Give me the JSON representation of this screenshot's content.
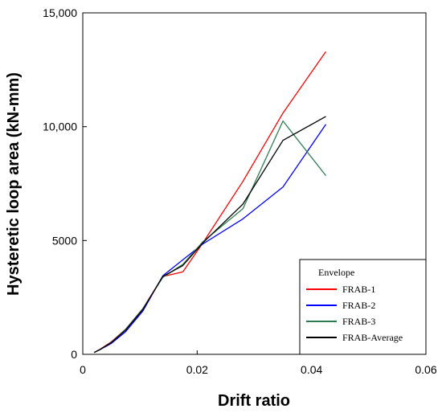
{
  "chart_data": {
    "type": "line",
    "xlabel": "Drift ratio",
    "ylabel": "Hysteretic loop area (kN-mm)",
    "xlim": [
      0,
      0.06
    ],
    "ylim": [
      0,
      15000
    ],
    "x_ticks": [
      0,
      0.02,
      0.04,
      0.06
    ],
    "x_tick_labels": [
      "0",
      "0.02",
      "0.04",
      "0.06"
    ],
    "y_ticks": [
      0,
      5000,
      10000,
      15000
    ],
    "y_tick_labels": [
      "0",
      "5000",
      "10,000",
      "15,000"
    ],
    "grid": false,
    "legend": {
      "title": "Envelope",
      "position": "bottom-right"
    },
    "series": [
      {
        "name": "FRAB-1",
        "color": "#ff0000",
        "x": [
          0.002,
          0.003,
          0.005,
          0.0075,
          0.0105,
          0.014,
          0.0175,
          0.021,
          0.028,
          0.035,
          0.0425
        ],
        "y": [
          80,
          220,
          550,
          1100,
          2000,
          3420,
          3620,
          4900,
          7600,
          10600,
          13300
        ]
      },
      {
        "name": "FRAB-2",
        "color": "#0000ff",
        "x": [
          0.002,
          0.003,
          0.005,
          0.0075,
          0.0105,
          0.014,
          0.0175,
          0.021,
          0.028,
          0.035,
          0.0425
        ],
        "y": [
          80,
          200,
          480,
          1000,
          1900,
          3450,
          4150,
          4850,
          5950,
          7350,
          10100
        ]
      },
      {
        "name": "FRAB-3",
        "color": "#2e7d4f",
        "x": [
          0.002,
          0.003,
          0.005,
          0.0075,
          0.0105,
          0.014,
          0.0175,
          0.021,
          0.028,
          0.035,
          0.0425
        ],
        "y": [
          80,
          210,
          530,
          1100,
          2000,
          3380,
          3950,
          4950,
          6400,
          10250,
          7850
        ]
      },
      {
        "name": "FRAB-Average",
        "color": "#000000",
        "x": [
          0.002,
          0.003,
          0.005,
          0.0075,
          0.0105,
          0.014,
          0.0175,
          0.021,
          0.028,
          0.035,
          0.0425
        ],
        "y": [
          80,
          210,
          520,
          1070,
          1970,
          3420,
          3900,
          4900,
          6600,
          9400,
          10450
        ]
      }
    ]
  }
}
